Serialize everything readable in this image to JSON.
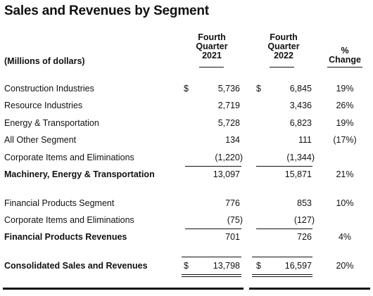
{
  "title": "Sales and Revenues by Segment",
  "header": {
    "units": "(Millions of dollars)",
    "col1": [
      "Fourth",
      "Quarter",
      "2021"
    ],
    "col2": [
      "Fourth",
      "Quarter",
      "2022"
    ],
    "col3": [
      "%",
      "Change"
    ]
  },
  "rows": [
    {
      "label": "Construction Industries",
      "dollar1": "$",
      "v2021": "5,736",
      "dollar2": "$",
      "v2022": "6,845",
      "pct": "19%",
      "bold": false
    },
    {
      "label": "Resource Industries",
      "dollar1": "",
      "v2021": "2,719",
      "dollar2": "",
      "v2022": "3,436",
      "pct": "26%",
      "bold": false
    },
    {
      "label": "Energy & Transportation",
      "dollar1": "",
      "v2021": "5,728",
      "dollar2": "",
      "v2022": "6,823",
      "pct": "19%",
      "bold": false
    },
    {
      "label": "All Other Segment",
      "dollar1": "",
      "v2021": "134",
      "dollar2": "",
      "v2022": "111",
      "pct": "(17%)",
      "bold": false
    },
    {
      "label": "Corporate Items and Eliminations",
      "dollar1": "",
      "v2021": "(1,220)",
      "dollar2": "",
      "v2022": "(1,344)",
      "pct": "",
      "bold": false
    },
    {
      "label": "Machinery, Energy & Transportation",
      "dollar1": "",
      "v2021": "13,097",
      "dollar2": "",
      "v2022": "15,871",
      "pct": "21%",
      "bold": true
    },
    {
      "label": "Financial Products Segment",
      "dollar1": "",
      "v2021": "776",
      "dollar2": "",
      "v2022": "853",
      "pct": "10%",
      "bold": false
    },
    {
      "label": "Corporate Items and Eliminations",
      "dollar1": "",
      "v2021": "(75)",
      "dollar2": "",
      "v2022": "(127)",
      "pct": "",
      "bold": false
    },
    {
      "label": "Financial Products Revenues",
      "dollar1": "",
      "v2021": "701",
      "dollar2": "",
      "v2022": "726",
      "pct": "4%",
      "bold": true
    },
    {
      "label": "Consolidated Sales and Revenues",
      "dollar1": "$",
      "v2021": "13,798",
      "dollar2": "$",
      "v2022": "16,597",
      "pct": "20%",
      "bold": true
    }
  ]
}
